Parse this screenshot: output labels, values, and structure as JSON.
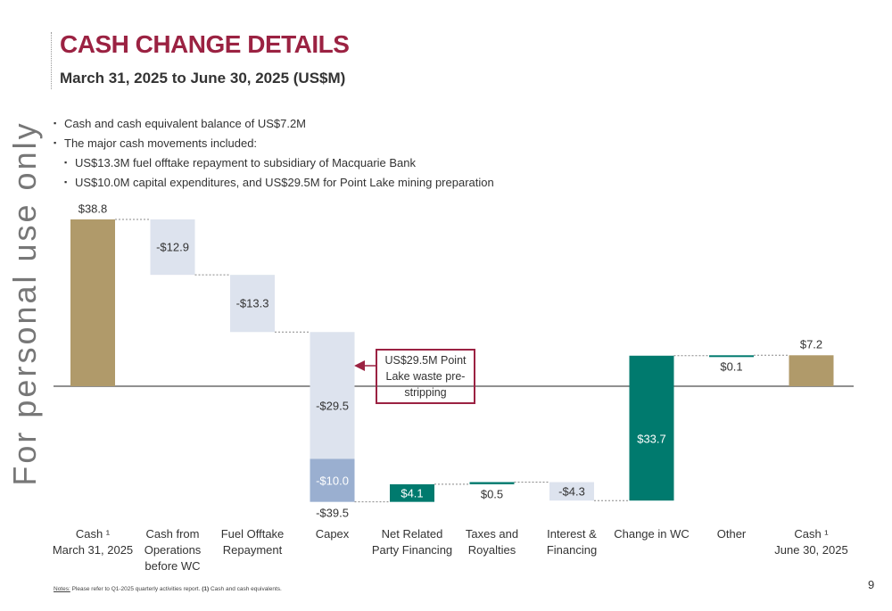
{
  "chart_data": {
    "type": "waterfall",
    "title": "CASH CHANGE DETAILS",
    "subtitle": "March 31, 2025 to June 30, 2025 (US$M)",
    "watermark": "For personal use only",
    "bullets": [
      {
        "text": "Cash and cash equivalent balance of US$7.2M",
        "level": 1
      },
      {
        "text": "The major cash movements included:",
        "level": 1
      },
      {
        "text": "US$13.3M fuel offtake repayment to subsidiary of Macquarie Bank",
        "level": 2
      },
      {
        "text": "US$10.0M capital expenditures, and US$29.5M for Point Lake mining preparation",
        "level": 2
      }
    ],
    "categories": [
      "Cash ¹\nMarch 31, 2025",
      "Cash from\nOperations\nbefore WC",
      "Fuel Offtake\nRepayment",
      "Capex",
      "Net Related\nParty Financing",
      "Taxes and\nRoyalties",
      "Interest &\nFinancing",
      "Change in WC",
      "Other",
      "Cash ¹\nJune 30, 2025"
    ],
    "kinds": [
      "total",
      "delta",
      "delta",
      "delta",
      "delta",
      "delta",
      "delta",
      "delta",
      "delta",
      "total"
    ],
    "values": [
      [
        38.8
      ],
      [
        -12.9
      ],
      [
        -13.3
      ],
      [
        -29.5,
        -10.0
      ],
      [
        4.1
      ],
      [
        0.5
      ],
      [
        -4.3
      ],
      [
        33.7
      ],
      [
        0.1
      ],
      [
        7.2
      ]
    ],
    "value_labels": [
      [
        "$38.8"
      ],
      [
        "-$12.9"
      ],
      [
        "-$13.3"
      ],
      [
        "-$29.5",
        "-$10.0"
      ],
      [
        "$4.1"
      ],
      [
        "$0.5"
      ],
      [
        "-$4.3"
      ],
      [
        "$33.7"
      ],
      [
        "$0.1"
      ],
      [
        "$7.2"
      ]
    ],
    "colors": [
      [
        "#b09a6a"
      ],
      [
        "#dde3ee"
      ],
      [
        "#dde3ee"
      ],
      [
        "#dde3ee",
        "#9aafd0"
      ],
      [
        "#007a6e"
      ],
      [
        "#007a6e"
      ],
      [
        "#dde3ee"
      ],
      [
        "#007a6e"
      ],
      [
        "#007a6e"
      ],
      [
        "#b09a6a"
      ]
    ],
    "capex_total": {
      "value": -39.5,
      "label": "-$39.5"
    },
    "callout": "US$29.5M Point\nLake waste pre-\nstripping",
    "notes": [
      "Notes:",
      "Please refer to Q1-2025 quarterly activities report.",
      "(1)",
      "Cash and cash equivalents."
    ],
    "page_number": "9"
  }
}
